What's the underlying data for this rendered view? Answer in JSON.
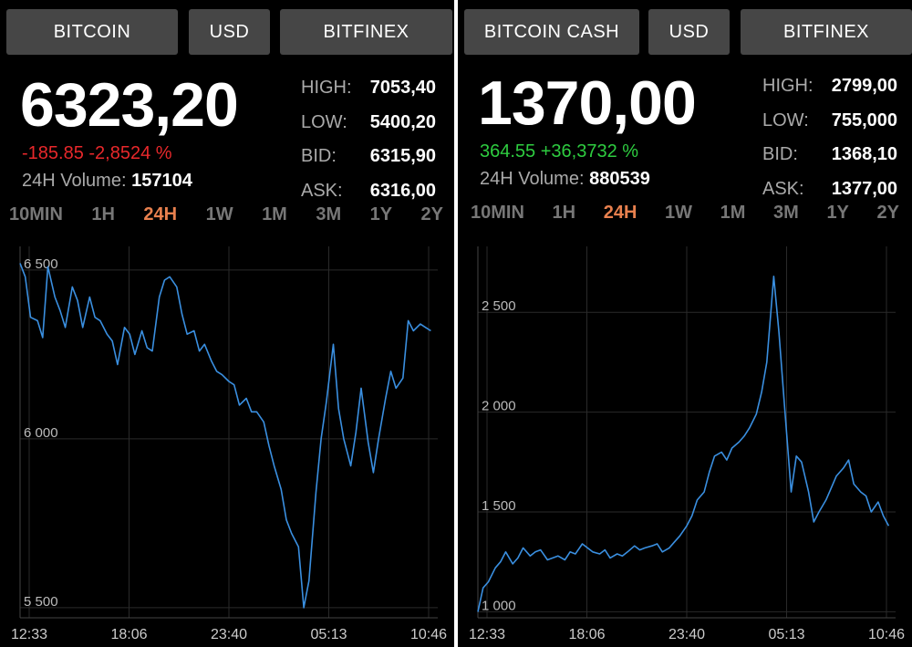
{
  "panels": [
    {
      "asset_button": "BITCOIN",
      "currency_button": "USD",
      "exchange_button": "BITFINEX",
      "price": "6323,20",
      "change": "-185.85 -2,8524 %",
      "change_direction": "negative",
      "volume_label": "24H Volume:",
      "volume_value": "157104",
      "stats": [
        {
          "label": "HIGH:",
          "value": "7053,40"
        },
        {
          "label": "LOW:",
          "value": "5400,20"
        },
        {
          "label": "BID:",
          "value": "6315,90"
        },
        {
          "label": "ASK:",
          "value": "6316,00"
        }
      ],
      "ranges": [
        "10MIN",
        "1H",
        "24H",
        "1W",
        "1M",
        "3M",
        "1Y",
        "2Y"
      ],
      "active_range": "24H"
    },
    {
      "asset_button": "BITCOIN CASH",
      "currency_button": "USD",
      "exchange_button": "BITFINEX",
      "price": "1370,00",
      "change": "364.55 +36,3732 %",
      "change_direction": "positive",
      "volume_label": "24H Volume:",
      "volume_value": "880539",
      "stats": [
        {
          "label": "HIGH:",
          "value": "2799,00"
        },
        {
          "label": "LOW:",
          "value": "755,000"
        },
        {
          "label": "BID:",
          "value": "1368,10"
        },
        {
          "label": "ASK:",
          "value": "1377,00"
        }
      ],
      "ranges": [
        "10MIN",
        "1H",
        "24H",
        "1W",
        "1M",
        "3M",
        "1Y",
        "2Y"
      ],
      "active_range": "24H"
    }
  ],
  "colors": {
    "line": "#3a8fe0",
    "negative": "#e8282b",
    "positive": "#2ecc40",
    "active_range": "#e8804e"
  },
  "chart_data": [
    {
      "type": "line",
      "title": "",
      "series": [
        {
          "name": "",
          "x": [
            0,
            0.3,
            0.6,
            1,
            1.3,
            1.6,
            2,
            2.3,
            2.6,
            3,
            3.3,
            3.6,
            4,
            4.3,
            4.6,
            5,
            5.3,
            5.6,
            6,
            6.3,
            6.6,
            7,
            7.3,
            7.6,
            8,
            8.3,
            8.6,
            9,
            9.3,
            9.6,
            10,
            10.3,
            10.6,
            11,
            11.3,
            11.6,
            12,
            12.3,
            12.6,
            13,
            13.3,
            13.6,
            14,
            14.3,
            14.6,
            15,
            15.3,
            15.6,
            16,
            16.3,
            16.6,
            17,
            17.3,
            17.6,
            18,
            18.3,
            18.6,
            19,
            19.3,
            19.6,
            20,
            20.3,
            20.6,
            21,
            21.3,
            21.6,
            22,
            22.3,
            22.6,
            23,
            23.3,
            23.6
          ],
          "values": [
            6520,
            6480,
            6360,
            6350,
            6300,
            6510,
            6420,
            6380,
            6330,
            6450,
            6410,
            6330,
            6420,
            6360,
            6350,
            6310,
            6290,
            6220,
            6330,
            6310,
            6250,
            6320,
            6270,
            6260,
            6420,
            6470,
            6480,
            6450,
            6370,
            6310,
            6320,
            6260,
            6280,
            6230,
            6200,
            6190,
            6170,
            6160,
            6100,
            6120,
            6080,
            6080,
            6050,
            5980,
            5920,
            5850,
            5760,
            5720,
            5680,
            5500,
            5580,
            5840,
            6000,
            6110,
            6280,
            6090,
            6000,
            5920,
            6020,
            6150,
            5990,
            5900,
            6000,
            6120,
            6200,
            6150,
            6180,
            6350,
            6320,
            6340,
            6330,
            6320
          ]
        }
      ],
      "x_ticks": [
        "12:33",
        "18:06",
        "23:40",
        "05:13",
        "10:46"
      ],
      "y_ticks": [
        5500,
        6000,
        6500
      ],
      "y_tick_labels": [
        "5 500",
        "6 000",
        "6 500"
      ],
      "ylim": [
        5470,
        6570
      ],
      "xlim": [
        0,
        24
      ],
      "grid": true
    },
    {
      "type": "line",
      "title": "",
      "series": [
        {
          "name": "",
          "x": [
            0,
            0.3,
            0.6,
            1,
            1.3,
            1.6,
            2,
            2.3,
            2.6,
            3,
            3.3,
            3.6,
            4,
            4.3,
            4.6,
            5,
            5.3,
            5.6,
            6,
            6.3,
            6.6,
            7,
            7.3,
            7.6,
            8,
            8.3,
            8.6,
            9,
            9.3,
            9.6,
            10,
            10.3,
            10.6,
            11,
            11.3,
            11.6,
            12,
            12.3,
            12.6,
            13,
            13.3,
            13.6,
            14,
            14.3,
            14.6,
            15,
            15.3,
            15.6,
            16,
            16.3,
            16.6,
            17,
            17.3,
            17.6,
            18,
            18.3,
            18.6,
            19,
            19.3,
            19.6,
            20,
            20.3,
            20.6,
            21,
            21.3,
            21.6,
            22,
            22.3,
            22.6,
            23,
            23.3,
            23.6
          ],
          "values": [
            1000,
            1120,
            1150,
            1220,
            1250,
            1300,
            1240,
            1270,
            1320,
            1280,
            1300,
            1310,
            1260,
            1270,
            1280,
            1260,
            1300,
            1290,
            1340,
            1320,
            1300,
            1290,
            1310,
            1270,
            1290,
            1280,
            1300,
            1330,
            1310,
            1320,
            1330,
            1340,
            1300,
            1320,
            1350,
            1380,
            1430,
            1480,
            1560,
            1600,
            1700,
            1780,
            1800,
            1760,
            1820,
            1850,
            1880,
            1920,
            1990,
            2100,
            2250,
            2680,
            2400,
            2050,
            1600,
            1780,
            1750,
            1600,
            1450,
            1500,
            1560,
            1620,
            1680,
            1720,
            1760,
            1640,
            1600,
            1580,
            1500,
            1550,
            1480,
            1430
          ]
        }
      ],
      "x_ticks": [
        "12:33",
        "18:06",
        "23:40",
        "05:13",
        "10:46"
      ],
      "y_ticks": [
        1000,
        1500,
        2000,
        2500
      ],
      "y_tick_labels": [
        "1 000",
        "1 500",
        "2 000",
        "2 500"
      ],
      "ylim": [
        970,
        2830
      ],
      "xlim": [
        0,
        24
      ],
      "grid": true
    }
  ]
}
